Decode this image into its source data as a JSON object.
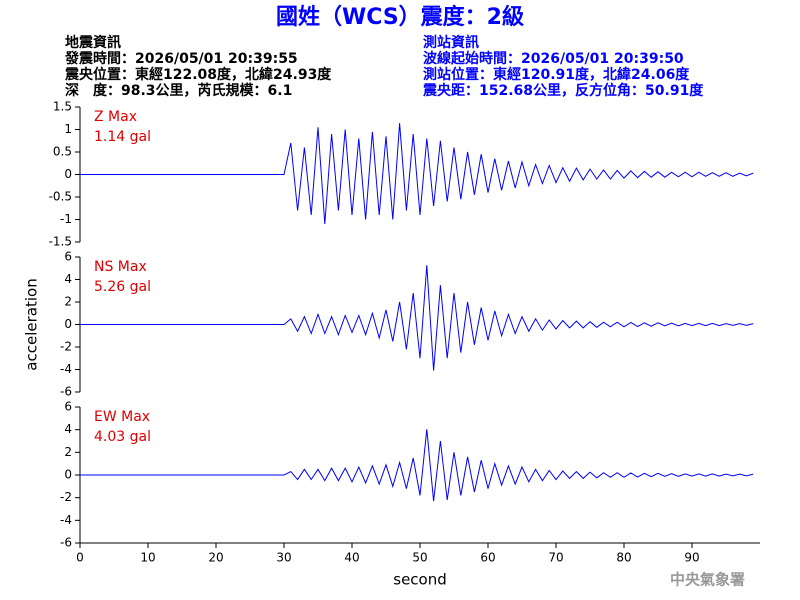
{
  "header": {
    "title": "國姓（WCS）震度：2級",
    "left": [
      "地震資訊",
      "發震時間：2026/05/01 20:39:55",
      "震央位置：東經122.08度，北緯24.93度",
      "深　度：98.3公里，芮氏規模：6.1"
    ],
    "right": [
      "測站資訊",
      "波線起始時間：2026/05/01 20:39:50",
      "測站位置：東經120.91度，北緯24.06度",
      "震央距：152.68公里，反方位角：50.91度"
    ]
  },
  "footer": "中央氣象署",
  "chart_data": [
    {
      "type": "line",
      "annotation": [
        "Z Max",
        "1.14 gal"
      ],
      "color": "#0000ff",
      "xlim": [
        0,
        100
      ],
      "ylim": [
        -1.5,
        1.5
      ],
      "yticks": [
        -1.5,
        -1,
        -0.5,
        0,
        0.5,
        1,
        1.5
      ],
      "x": [
        0,
        30,
        31,
        32,
        33,
        34,
        35,
        36,
        37,
        38,
        39,
        40,
        41,
        42,
        43,
        44,
        45,
        46,
        47,
        48,
        49,
        50,
        51,
        52,
        53,
        54,
        55,
        56,
        57,
        58,
        59,
        60,
        61,
        62,
        63,
        64,
        65,
        66,
        67,
        68,
        69,
        70,
        71,
        72,
        73,
        74,
        75,
        76,
        77,
        78,
        79,
        80,
        81,
        82,
        83,
        84,
        85,
        86,
        87,
        88,
        89,
        90,
        91,
        92,
        93,
        94,
        95,
        96,
        97,
        98,
        99
      ],
      "values": [
        0,
        0,
        0.7,
        -0.8,
        0.6,
        -0.9,
        1.05,
        -1.1,
        0.9,
        -0.8,
        1.0,
        -0.9,
        0.8,
        -1.0,
        0.95,
        -0.9,
        0.85,
        -1.0,
        1.14,
        -0.8,
        0.9,
        -0.9,
        0.8,
        -0.7,
        0.75,
        -0.6,
        0.6,
        -0.55,
        0.5,
        -0.45,
        0.45,
        -0.4,
        0.35,
        -0.35,
        0.3,
        -0.3,
        0.28,
        -0.25,
        0.22,
        -0.2,
        0.2,
        -0.18,
        0.15,
        -0.15,
        0.14,
        -0.12,
        0.12,
        -0.1,
        0.1,
        -0.1,
        0.09,
        -0.08,
        0.08,
        -0.07,
        0.07,
        -0.06,
        0.06,
        -0.06,
        0.05,
        -0.05,
        0.05,
        -0.05,
        0.05,
        -0.04,
        0.04,
        -0.04,
        0.04,
        -0.04,
        0.03,
        -0.03,
        0.03
      ]
    },
    {
      "type": "line",
      "annotation": [
        "NS Max",
        "5.26 gal"
      ],
      "ylabel": "acceleration",
      "color": "#0000ff",
      "xlim": [
        0,
        100
      ],
      "ylim": [
        -6,
        6
      ],
      "yticks": [
        -6,
        -4,
        -2,
        0,
        2,
        4,
        6
      ],
      "x": [
        0,
        30,
        31,
        32,
        33,
        34,
        35,
        36,
        37,
        38,
        39,
        40,
        41,
        42,
        43,
        44,
        45,
        46,
        47,
        48,
        49,
        50,
        51,
        52,
        53,
        54,
        55,
        56,
        57,
        58,
        59,
        60,
        61,
        62,
        63,
        64,
        65,
        66,
        67,
        68,
        69,
        70,
        71,
        72,
        73,
        74,
        75,
        76,
        77,
        78,
        79,
        80,
        81,
        82,
        83,
        84,
        85,
        86,
        87,
        88,
        89,
        90,
        91,
        92,
        93,
        94,
        95,
        96,
        97,
        98,
        99
      ],
      "values": [
        0,
        0,
        0.5,
        -0.6,
        0.7,
        -0.8,
        0.9,
        -0.8,
        0.7,
        -0.9,
        0.8,
        -0.7,
        0.8,
        -0.9,
        1.0,
        -1.2,
        1.3,
        -1.5,
        2.0,
        -2.2,
        2.8,
        -3.0,
        5.26,
        -4.1,
        3.5,
        -3.0,
        2.8,
        -2.5,
        2.0,
        -1.8,
        1.5,
        -1.4,
        1.2,
        -1.0,
        0.9,
        -0.8,
        0.7,
        -0.6,
        0.5,
        -0.5,
        0.4,
        -0.4,
        0.35,
        -0.3,
        0.3,
        -0.3,
        0.25,
        -0.25,
        0.2,
        -0.2,
        0.2,
        -0.2,
        0.18,
        -0.18,
        0.15,
        -0.15,
        0.15,
        -0.12,
        0.12,
        -0.12,
        0.1,
        -0.1,
        0.1,
        -0.1,
        0.1,
        -0.1,
        0.08,
        -0.08,
        0.08,
        -0.08,
        0.08
      ]
    },
    {
      "type": "line",
      "annotation": [
        "EW Max",
        "4.03 gal"
      ],
      "xlabel": "second",
      "color": "#0000ff",
      "xlim": [
        0,
        100
      ],
      "ylim": [
        -6,
        6
      ],
      "yticks": [
        -6,
        -4,
        -2,
        0,
        2,
        4,
        6
      ],
      "xticks": [
        0,
        10,
        20,
        30,
        40,
        50,
        60,
        70,
        80,
        90
      ],
      "x": [
        0,
        30,
        31,
        32,
        33,
        34,
        35,
        36,
        37,
        38,
        39,
        40,
        41,
        42,
        43,
        44,
        45,
        46,
        47,
        48,
        49,
        50,
        51,
        52,
        53,
        54,
        55,
        56,
        57,
        58,
        59,
        60,
        61,
        62,
        63,
        64,
        65,
        66,
        67,
        68,
        69,
        70,
        71,
        72,
        73,
        74,
        75,
        76,
        77,
        78,
        79,
        80,
        81,
        82,
        83,
        84,
        85,
        86,
        87,
        88,
        89,
        90,
        91,
        92,
        93,
        94,
        95,
        96,
        97,
        98,
        99
      ],
      "values": [
        0,
        0,
        0.3,
        -0.4,
        0.5,
        -0.4,
        0.5,
        -0.5,
        0.6,
        -0.5,
        0.6,
        -0.6,
        0.7,
        -0.7,
        0.8,
        -0.8,
        0.9,
        -1.0,
        1.1,
        -1.2,
        1.5,
        -1.8,
        4.03,
        -2.3,
        3.0,
        -2.2,
        2.0,
        -1.8,
        1.6,
        -1.5,
        1.3,
        -1.2,
        1.0,
        -0.9,
        0.8,
        -0.8,
        0.7,
        -0.6,
        0.5,
        -0.5,
        0.4,
        -0.4,
        0.35,
        -0.3,
        0.3,
        -0.3,
        0.25,
        -0.25,
        0.2,
        -0.2,
        0.2,
        -0.2,
        0.18,
        -0.18,
        0.15,
        -0.15,
        0.15,
        -0.12,
        0.12,
        -0.12,
        0.1,
        -0.1,
        0.1,
        -0.1,
        0.1,
        -0.1,
        0.08,
        -0.08,
        0.08,
        -0.08,
        0.08
      ]
    }
  ]
}
